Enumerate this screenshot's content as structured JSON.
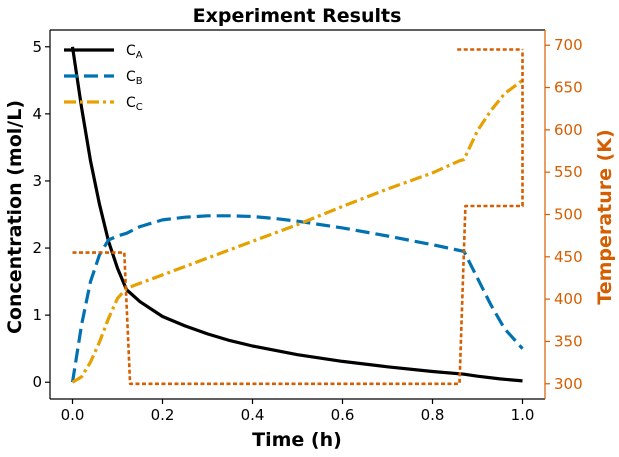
{
  "chart_data": {
    "type": "line",
    "title": "Experiment Results",
    "xlabel": "Time (h)",
    "ylabel": "Concentration (mol/L)",
    "y2label": "Temperature (K)",
    "xlim": [
      -0.05,
      1.05
    ],
    "ylim": [
      -0.25,
      5.25
    ],
    "y2lim": [
      282,
      718
    ],
    "xticks": [
      0.0,
      0.2,
      0.4,
      0.6,
      0.8,
      1.0
    ],
    "xtick_labels": [
      "0.0",
      "0.2",
      "0.4",
      "0.6",
      "0.8",
      "1.0"
    ],
    "yticks": [
      0,
      1,
      2,
      3,
      4,
      5
    ],
    "ytick_labels": [
      "0",
      "1",
      "2",
      "3",
      "4",
      "5"
    ],
    "y2ticks": [
      300,
      350,
      400,
      450,
      500,
      550,
      600,
      650,
      700
    ],
    "y2tick_labels": [
      "300",
      "350",
      "400",
      "450",
      "500",
      "550",
      "600",
      "650",
      "700"
    ],
    "grid": false,
    "legend_placement": "top-left",
    "series": [
      {
        "name": "C",
        "subscript": "A",
        "axis": "left",
        "color": "#000000",
        "style": "solid",
        "x": [
          0.0,
          0.02,
          0.04,
          0.06,
          0.08,
          0.1,
          0.12,
          0.15,
          0.2,
          0.25,
          0.3,
          0.35,
          0.4,
          0.5,
          0.6,
          0.7,
          0.8,
          0.87,
          0.9,
          0.95,
          1.0
        ],
        "values": [
          5.0,
          4.1,
          3.3,
          2.65,
          2.1,
          1.7,
          1.38,
          1.2,
          0.98,
          0.84,
          0.72,
          0.62,
          0.54,
          0.41,
          0.31,
          0.23,
          0.16,
          0.12,
          0.09,
          0.05,
          0.02
        ]
      },
      {
        "name": "C",
        "subscript": "B",
        "axis": "left",
        "color": "#0072b2",
        "style": "dash",
        "x": [
          0.0,
          0.02,
          0.04,
          0.06,
          0.08,
          0.1,
          0.12,
          0.15,
          0.2,
          0.25,
          0.3,
          0.35,
          0.4,
          0.45,
          0.5,
          0.6,
          0.7,
          0.8,
          0.87,
          0.9,
          0.93,
          0.96,
          1.0
        ],
        "values": [
          0.0,
          0.85,
          1.5,
          1.9,
          2.12,
          2.18,
          2.22,
          2.32,
          2.42,
          2.46,
          2.48,
          2.48,
          2.47,
          2.44,
          2.4,
          2.3,
          2.18,
          2.05,
          1.95,
          1.55,
          1.15,
          0.8,
          0.5
        ]
      },
      {
        "name": "C",
        "subscript": "C",
        "axis": "left",
        "color": "#e6a000",
        "style": "dashdot",
        "x": [
          0.0,
          0.02,
          0.04,
          0.06,
          0.08,
          0.1,
          0.12,
          0.2,
          0.3,
          0.4,
          0.5,
          0.6,
          0.7,
          0.8,
          0.86,
          0.87,
          0.9,
          0.93,
          0.96,
          1.0
        ],
        "values": [
          0.0,
          0.08,
          0.3,
          0.6,
          0.95,
          1.25,
          1.4,
          1.6,
          1.85,
          2.1,
          2.35,
          2.62,
          2.88,
          3.12,
          3.3,
          3.32,
          3.75,
          4.05,
          4.3,
          4.5
        ]
      },
      {
        "name": "Temperature",
        "axis": "right",
        "color": "#d55e00",
        "style": "dot",
        "x": [
          0.0,
          0.115,
          0.128,
          0.86,
          0.873,
          1.0,
          1.0
        ],
        "values": [
          455,
          455,
          300,
          300,
          510,
          510,
          695
        ]
      },
      {
        "name": "Temperature",
        "axis": "right",
        "color": "#d55e00",
        "style": "dot",
        "x": [
          0.855,
          1.0
        ],
        "values": [
          695,
          695
        ]
      }
    ],
    "legend": [
      {
        "name": "C",
        "subscript": "A",
        "color": "#000000",
        "style": "solid"
      },
      {
        "name": "C",
        "subscript": "B",
        "color": "#0072b2",
        "style": "dash"
      },
      {
        "name": "C",
        "subscript": "C",
        "color": "#e6a000",
        "style": "dashdot"
      }
    ],
    "colors": {
      "right_axis": "#d55e00",
      "axes": "#000000"
    }
  }
}
